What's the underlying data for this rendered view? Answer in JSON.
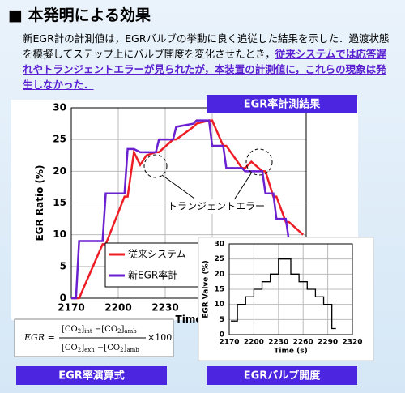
{
  "heading": "■ 本発明による効果",
  "intro": {
    "text": "新EGR計の計測値は，EGRバルブの挙動に良く追従した結果を示した．過渡状態を模擬してステップ上にバルブ開度を変化させたとき，",
    "highlight": "従来システムでは応答遅れやトランジェントエラーが見られたが，本装置の計測値に，これらの現象は発生しなかった．"
  },
  "labels": {
    "result": "EGR率計測結果",
    "formula": "EGR率演算式",
    "valve": "EGRバルブ開度"
  },
  "formula": {
    "lhs": "EGR =",
    "numerator": [
      {
        "text": "[CO"
      },
      {
        "text": "2",
        "sub": true
      },
      {
        "text": "]"
      },
      {
        "text": "int",
        "sub": true
      },
      {
        "text": " −[CO"
      },
      {
        "text": "2",
        "sub": true
      },
      {
        "text": "]"
      },
      {
        "text": "amb",
        "sub": true
      }
    ],
    "denominator": [
      {
        "text": "[CO"
      },
      {
        "text": "2",
        "sub": true
      },
      {
        "text": "]"
      },
      {
        "text": "exh",
        "sub": true
      },
      {
        "text": " −[CO"
      },
      {
        "text": "2",
        "sub": true
      },
      {
        "text": "]"
      },
      {
        "text": "amb",
        "sub": true
      }
    ],
    "factor": "×100"
  },
  "chart_data": [
    {
      "type": "line",
      "xlabel": "Time",
      "ylabel": "EGR Ratio (%)",
      "annotation": "トランジェントエラー",
      "x": [
        2170,
        2173,
        2175,
        2190,
        2192,
        2204,
        2206,
        2210,
        2214,
        2218,
        2224,
        2226,
        2235,
        2237,
        2248,
        2250,
        2258,
        2260,
        2267,
        2269,
        2279,
        2281,
        2285,
        2292,
        2294,
        2299,
        2301,
        2307,
        2309,
        2318
      ],
      "series": [
        {
          "name": "従来システム",
          "color": "#ee1c25",
          "values": [
            0,
            0,
            0,
            8.5,
            8.5,
            16,
            16,
            23,
            21,
            22.5,
            23,
            23,
            25,
            25,
            27,
            27.5,
            28,
            28,
            24,
            24,
            20.5,
            20.5,
            21.5,
            20,
            20,
            16,
            16,
            12,
            12,
            10
          ]
        },
        {
          "name": "新EGR率計",
          "color": "#6a1fd0",
          "values": [
            0,
            0,
            9,
            9,
            16.5,
            16.5,
            23.5,
            23.5,
            23,
            23,
            23,
            25,
            25,
            27,
            27.5,
            28,
            28,
            24,
            24,
            20.5,
            20.5,
            20,
            20,
            20,
            16.5,
            16.5,
            12.5,
            12.5,
            9,
            8.5
          ]
        }
      ],
      "xlim": [
        2170,
        2320
      ],
      "xticks": [
        2170,
        2200,
        2230,
        2260
      ],
      "ylim": [
        0,
        30
      ],
      "yticks": [
        0,
        5,
        10,
        15,
        20,
        25,
        30
      ],
      "grid": true,
      "legend": "lower left"
    },
    {
      "type": "line",
      "xlabel": "Time (s)",
      "ylabel": "EGR Valve (%)",
      "x": [
        2172,
        2180,
        2180,
        2190,
        2190,
        2200,
        2200,
        2210,
        2210,
        2220,
        2220,
        2230,
        2230,
        2245,
        2245,
        2255,
        2255,
        2265,
        2265,
        2275,
        2275,
        2285,
        2285,
        2295,
        2295,
        2300
      ],
      "series": [
        {
          "color": "#000000",
          "values": [
            4.5,
            4.5,
            10,
            10,
            12.5,
            12.5,
            15,
            15,
            17.5,
            17.5,
            20,
            20,
            25,
            25,
            20,
            20,
            17.5,
            17.5,
            15,
            15,
            12.5,
            12.5,
            10,
            10,
            2,
            2
          ]
        }
      ],
      "xlim": [
        2170,
        2320
      ],
      "xticks": [
        2170,
        2200,
        2230,
        2260,
        2290,
        2320
      ],
      "ylim": [
        0,
        30
      ],
      "yticks": [
        0,
        5,
        10,
        15,
        20,
        25,
        30
      ],
      "grid": true
    }
  ]
}
